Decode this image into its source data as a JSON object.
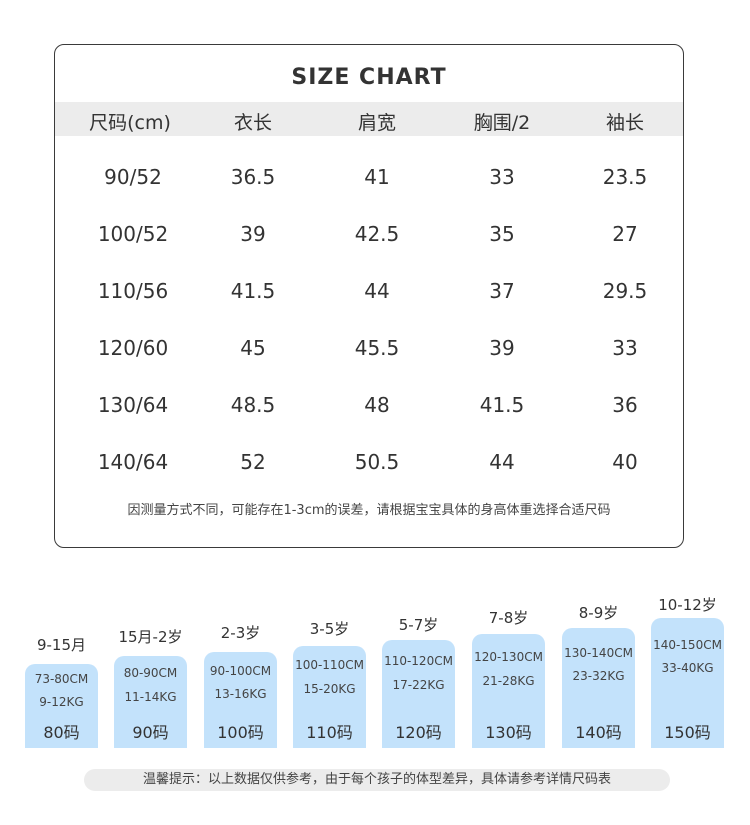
{
  "title": "SIZE CHART",
  "headers": [
    "尺码(cm)",
    "衣长",
    "肩宽",
    "胸围/2",
    "袖长"
  ],
  "rows": [
    [
      "90/52",
      "36.5",
      "41",
      "33",
      "23.5"
    ],
    [
      "100/52",
      "39",
      "42.5",
      "35",
      "27"
    ],
    [
      "110/56",
      "41.5",
      "44",
      "37",
      "29.5"
    ],
    [
      "120/60",
      "45",
      "45.5",
      "39",
      "33"
    ],
    [
      "130/64",
      "48.5",
      "48",
      "41.5",
      "36"
    ],
    [
      "140/64",
      "52",
      "50.5",
      "44",
      "40"
    ]
  ],
  "note": "因测量方式不同，可能存在1-3cm的误差，请根据宝宝具体的身高体重选择合适尺码",
  "sizes": [
    {
      "age": "9-15月",
      "height": "73-80CM",
      "weight": "9-12KG",
      "size": "80码"
    },
    {
      "age": "15月-2岁",
      "height": "80-90CM",
      "weight": "11-14KG",
      "size": "90码"
    },
    {
      "age": "2-3岁",
      "height": "90-100CM",
      "weight": "13-16KG",
      "size": "100码"
    },
    {
      "age": "3-5岁",
      "height": "100-110CM",
      "weight": "15-20KG",
      "size": "110码"
    },
    {
      "age": "5-7岁",
      "height": "110-120CM",
      "weight": "17-22KG",
      "size": "120码"
    },
    {
      "age": "7-8岁",
      "height": "120-130CM",
      "weight": "21-28KG",
      "size": "130码"
    },
    {
      "age": "8-9岁",
      "height": "130-140CM",
      "weight": "23-32KG",
      "size": "140码"
    },
    {
      "age": "10-12岁",
      "height": "140-150CM",
      "weight": "33-40KG",
      "size": "150码"
    }
  ],
  "tip": "温馨提示：以上数据仅供参考，由于每个孩子的体型差异，具体请参考详情尺码表",
  "colors": {
    "bar": "#c3e2fb",
    "header_bg": "#ececec",
    "border": "#3a3a3a"
  }
}
